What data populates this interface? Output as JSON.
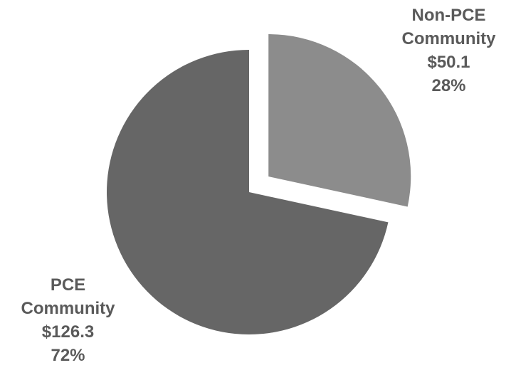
{
  "chart_data": {
    "type": "pie",
    "title": "",
    "series": [
      {
        "name": "Non-PCE Community",
        "label_lines": [
          "Non-PCE",
          "Community"
        ],
        "value": 50.1,
        "value_label": "$50.1",
        "percent_label": "28%",
        "color": "#8c8c8c",
        "exploded": true
      },
      {
        "name": "PCE Community",
        "label_lines": [
          "PCE",
          "Community"
        ],
        "value": 126.3,
        "value_label": "$126.3",
        "percent_label": "72%",
        "color": "#666666",
        "exploded": false
      }
    ],
    "start_angle_deg": 0,
    "direction": "clockwise",
    "legend": "none",
    "label_color": "#5a5a5a"
  }
}
